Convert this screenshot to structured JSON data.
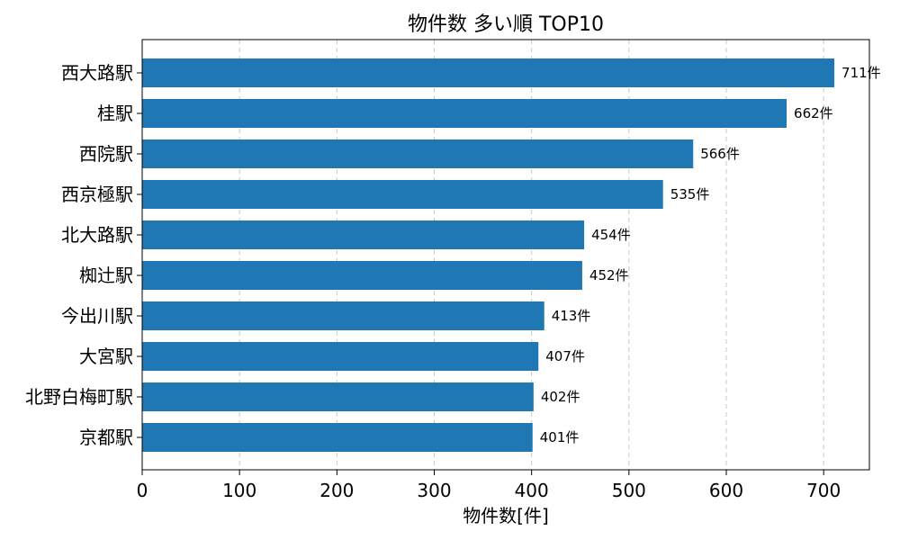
{
  "chart_data": {
    "type": "bar",
    "orientation": "horizontal",
    "title": "物件数 多い順 TOP10",
    "xlabel": "物件数[件]",
    "ylabel": "",
    "categories": [
      "西大路駅",
      "桂駅",
      "西院駅",
      "西京極駅",
      "北大路駅",
      "椥辻駅",
      "今出川駅",
      "大宮駅",
      "北野白梅町駅",
      "京都駅"
    ],
    "values": [
      711,
      662,
      566,
      535,
      454,
      452,
      413,
      407,
      402,
      401
    ],
    "value_labels": [
      "711件",
      "662件",
      "566件",
      "535件",
      "454件",
      "452件",
      "413件",
      "407件",
      "402件",
      "401件"
    ],
    "xlim": [
      0,
      747
    ],
    "xticks": [
      0,
      100,
      200,
      300,
      400,
      500,
      600,
      700
    ],
    "xtick_labels": [
      "0",
      "100",
      "200",
      "300",
      "400",
      "500",
      "600",
      "700"
    ],
    "grid": "x-dashed",
    "bar_color": "#1f77b4"
  }
}
